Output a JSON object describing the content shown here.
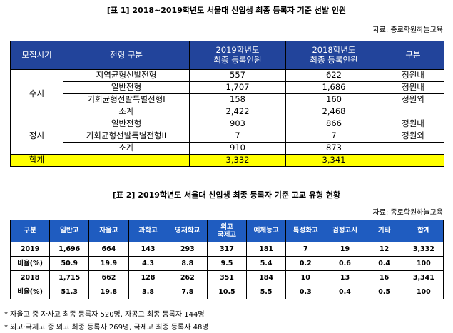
{
  "table1": {
    "title": "[표 1] 2018~2019학년도 서울대 신입생 최종 등록자 기준 선발 인원",
    "source": "자료: 종로학원하늘교육",
    "headers": [
      "모집시기",
      "전형 구분",
      [
        "2019학년도",
        "최종 등록인원"
      ],
      [
        "2018학년도",
        "최종 등록인원"
      ],
      "구분"
    ],
    "groups": [
      {
        "period": "수시",
        "rows": [
          [
            "지역균형선발전형",
            "557",
            "622",
            "정원내"
          ],
          [
            "일반전형",
            "1,707",
            "1,686",
            "정원내"
          ],
          [
            "기회균형선발특별전형I",
            "158",
            "160",
            "정원외"
          ],
          [
            "소계",
            "2,422",
            "2,468"
          ]
        ]
      },
      {
        "period": "정시",
        "rows": [
          [
            "일반전형",
            "903",
            "866",
            "정원내"
          ],
          [
            "기회균형선발특별전형II",
            "7",
            "7",
            "정원외"
          ],
          [
            "소계",
            "910",
            "873"
          ]
        ]
      }
    ],
    "total": [
      "합계",
      "3,332",
      "3,341"
    ]
  },
  "table2": {
    "title": "[표 2] 2019학년도 서울대 신입생 최종 등록자 기준 고교 유형 현황",
    "source": "자료: 종로학원하늘교육",
    "headers": [
      "구분",
      "일반고",
      "자율고",
      "과학고",
      "영재학교",
      [
        "외고",
        "국제고"
      ],
      "예체능고",
      "특성화고",
      "검정고시",
      "기타",
      "합계"
    ],
    "rows": [
      [
        "2019",
        "1,696",
        "664",
        "143",
        "293",
        "317",
        "181",
        "7",
        "19",
        "12",
        "3,332"
      ],
      [
        "비율(%)",
        "50.9",
        "19.9",
        "4.3",
        "8.8",
        "9.5",
        "5.4",
        "0.2",
        "0.6",
        "0.4",
        "100"
      ],
      [
        "2018",
        "1,715",
        "662",
        "128",
        "262",
        "351",
        "184",
        "10",
        "13",
        "16",
        "3,341"
      ],
      [
        "비율(%)",
        "51.3",
        "19.8",
        "3.8",
        "7.8",
        "10.5",
        "5.5",
        "0.3",
        "0.4",
        "0.5",
        "100"
      ]
    ]
  },
  "notes": [
    "* 자율고 중 자사고 최종 등록자 520명, 자공고 최종 등록자 144명",
    "* 외고·국제고 중 외고 최종 등록자 269명, 국제고 최종 등록자 48명"
  ]
}
